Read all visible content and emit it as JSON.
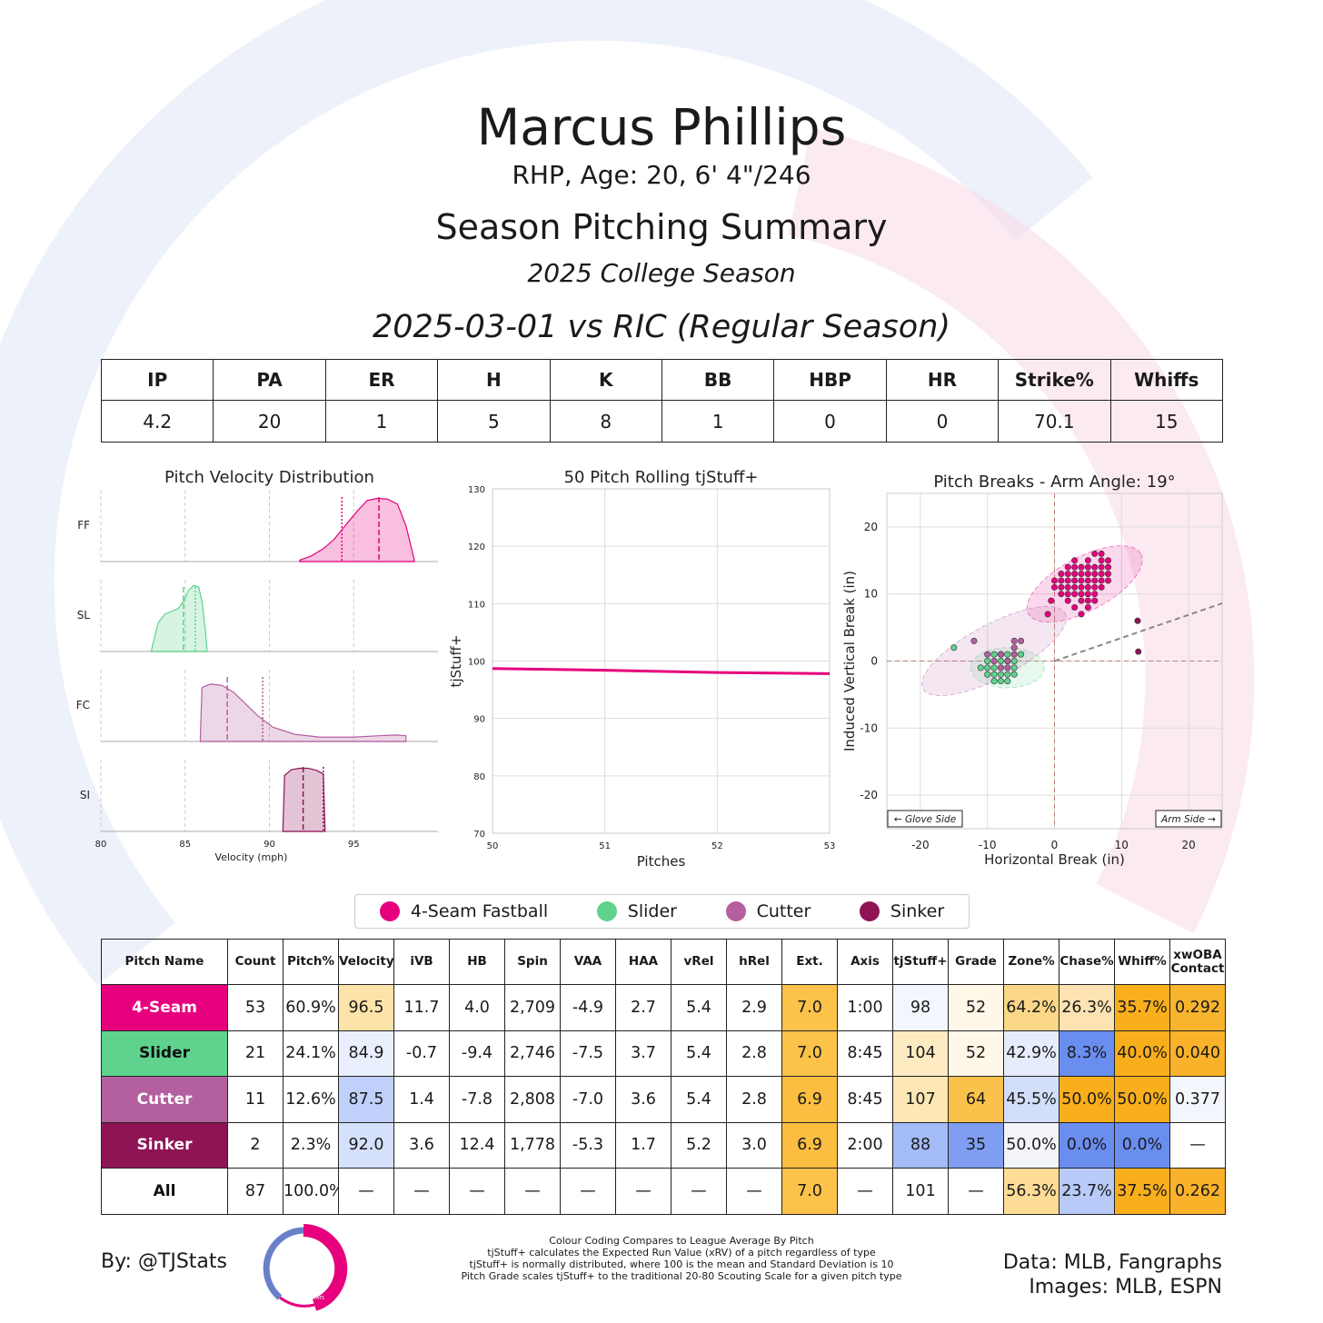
{
  "header": {
    "player_name": "Marcus Phillips",
    "player_info": "RHP, Age: 20, 6' 4\"/246",
    "summary_title": "Season Pitching Summary",
    "season_label": "2025 College Season",
    "game_label": "2025-03-01 vs RIC (Regular Season)"
  },
  "line_score": {
    "headers": [
      "IP",
      "PA",
      "ER",
      "H",
      "K",
      "BB",
      "HBP",
      "HR",
      "Strike%",
      "Whiffs"
    ],
    "values": [
      "4.2",
      "20",
      "1",
      "5",
      "8",
      "1",
      "0",
      "0",
      "70.1",
      "15"
    ]
  },
  "colors": {
    "four_seam": "#E6007E",
    "slider": "#5FD38D",
    "cutter": "#B45FA0",
    "sinker": "#8E1456",
    "table_orange_strong": "#F9A825",
    "table_blue_strong": "#6A8DF0"
  },
  "legend": [
    {
      "label": "4-Seam Fastball",
      "color": "#E6007E"
    },
    {
      "label": "Slider",
      "color": "#5FD38D"
    },
    {
      "label": "Cutter",
      "color": "#B45FA0"
    },
    {
      "label": "Sinker",
      "color": "#8E1456"
    }
  ],
  "pitch_table": {
    "headers": [
      "Pitch Name",
      "Count",
      "Pitch%",
      "Velocity",
      "iVB",
      "HB",
      "Spin",
      "VAA",
      "HAA",
      "vRel",
      "hRel",
      "Ext.",
      "Axis",
      "tjStuff+",
      "Grade",
      "Zone%",
      "Chase%",
      "Whiff%",
      "xwOBA Contact"
    ],
    "rows": [
      {
        "name": "4-Seam",
        "name_bg": "#E6007E",
        "name_color": "#ffffff",
        "cells": [
          "53",
          "60.9%",
          "96.5",
          "11.7",
          "4.0",
          "2,709",
          "-4.9",
          "2.7",
          "5.4",
          "2.9",
          "7.0",
          "1:00",
          "98",
          "52",
          "64.2%",
          "26.3%",
          "35.7%",
          "0.292"
        ],
        "bg": [
          "",
          "",
          "#FDE3A7",
          "",
          "",
          "",
          "",
          "",
          "",
          "",
          "#FCC24A",
          "",
          "#F3F6FD",
          "#FFF7E8",
          "#FDD788",
          "#FEE3B2",
          "#F9AE1C",
          "#F9B42E"
        ]
      },
      {
        "name": "Slider",
        "name_bg": "#5FD38D",
        "name_color": "#111111",
        "cells": [
          "21",
          "24.1%",
          "84.9",
          "-0.7",
          "-9.4",
          "2,746",
          "-7.5",
          "3.7",
          "5.4",
          "2.8",
          "7.0",
          "8:45",
          "104",
          "52",
          "42.9%",
          "8.3%",
          "40.0%",
          "0.040"
        ],
        "bg": [
          "",
          "",
          "#E9EFFC",
          "",
          "",
          "",
          "",
          "",
          "",
          "",
          "#FCC24A",
          "",
          "#FFEBC2",
          "#FFF7E8",
          "#E6ECFB",
          "#6A8DF0",
          "#F9AE1C",
          "#F9B22A"
        ]
      },
      {
        "name": "Cutter",
        "name_bg": "#B45FA0",
        "name_color": "#ffffff",
        "cells": [
          "11",
          "12.6%",
          "87.5",
          "1.4",
          "-7.8",
          "2,808",
          "-7.0",
          "3.6",
          "5.4",
          "2.8",
          "6.9",
          "8:45",
          "107",
          "64",
          "45.5%",
          "50.0%",
          "50.0%",
          "0.377"
        ],
        "bg": [
          "",
          "",
          "#BFD0FA",
          "",
          "",
          "",
          "",
          "",
          "",
          "",
          "#FCBE40",
          "",
          "#FEE6B5",
          "#FAC24A",
          "#D2DEFA",
          "#F9AE1C",
          "#F9AE1C",
          "#F4F6FD"
        ]
      },
      {
        "name": "Sinker",
        "name_bg": "#8E1456",
        "name_color": "#ffffff",
        "cells": [
          "2",
          "2.3%",
          "92.0",
          "3.6",
          "12.4",
          "1,778",
          "-5.3",
          "1.7",
          "5.2",
          "3.0",
          "6.9",
          "2:00",
          "88",
          "35",
          "50.0%",
          "0.0%",
          "0.0%",
          "—"
        ],
        "bg": [
          "",
          "",
          "#D5E0FA",
          "",
          "",
          "",
          "",
          "",
          "",
          "",
          "#FCBE40",
          "",
          "#A3BCF6",
          "#7F9EF2",
          "#F2F4FA",
          "#6A8DF0",
          "#6A8DF0",
          ""
        ]
      },
      {
        "name": "All",
        "name_bg": "#ffffff",
        "name_color": "#111111",
        "cells": [
          "87",
          "100.0%",
          "—",
          "—",
          "—",
          "—",
          "—",
          "—",
          "—",
          "—",
          "7.0",
          "—",
          "101",
          "—",
          "56.3%",
          "23.7%",
          "37.5%",
          "0.262"
        ],
        "bg": [
          "",
          "",
          "",
          "",
          "",
          "",
          "",
          "",
          "",
          "",
          "#FCC24A",
          "",
          "",
          "",
          "#FDDC95",
          "#B8CBF8",
          "#F9AE1C",
          "#F9B22A"
        ]
      }
    ]
  },
  "footer": {
    "by": "By: @TJStats",
    "notes": [
      "Colour Coding Compares to League Average By Pitch",
      "tjStuff+ calculates the Expected Run Value (xRV) of a pitch regardless of type",
      "tjStuff+ is normally distributed, where 100 is the mean and Standard Deviation is 10",
      "Pitch Grade scales tjStuff+ to the traditional 20-80 Scouting Scale for a given pitch type"
    ],
    "data_source": "Data: MLB, Fangraphs",
    "images_source": "Images: MLB, ESPN",
    "logo_text": "STATS"
  },
  "chart_data": [
    {
      "type": "area",
      "title": "Pitch Velocity Distribution",
      "xlabel": "Velocity (mph)",
      "ylabel": "",
      "xlim": [
        80,
        100
      ],
      "xticks": [
        80,
        85,
        90,
        95
      ],
      "series": [
        {
          "name": "FF",
          "color": "#E6007E",
          "mean": 96.5,
          "league": 94.3,
          "x": [
            91.8,
            92.5,
            93.2,
            93.8,
            94.5,
            95.2,
            95.8,
            96.4,
            97.0,
            97.6,
            98.1,
            98.6
          ],
          "y": [
            0.02,
            0.08,
            0.18,
            0.3,
            0.5,
            0.7,
            0.85,
            0.88,
            0.87,
            0.8,
            0.5,
            0.02
          ]
        },
        {
          "name": "SL",
          "color": "#5FD38D",
          "mean": 84.9,
          "league": 85.6,
          "x": [
            83.0,
            83.4,
            83.8,
            84.2,
            84.6,
            84.9,
            85.2,
            85.5,
            85.8,
            86.0,
            86.2,
            86.3
          ],
          "y": [
            0.02,
            0.4,
            0.52,
            0.56,
            0.6,
            0.7,
            0.85,
            0.92,
            0.9,
            0.7,
            0.3,
            0.02
          ]
        },
        {
          "name": "FC",
          "color": "#B45FA0",
          "mean": 87.5,
          "league": 89.6,
          "x": [
            85.9,
            86.0,
            86.5,
            87.2,
            87.9,
            88.6,
            89.3,
            90.2,
            91.5,
            93.0,
            95.0,
            96.5,
            97.5,
            98.1
          ],
          "y": [
            0.05,
            0.75,
            0.8,
            0.78,
            0.68,
            0.52,
            0.36,
            0.2,
            0.1,
            0.06,
            0.06,
            0.08,
            0.09,
            0.08
          ]
        },
        {
          "name": "SI",
          "color": "#8E1456",
          "mean": 92.0,
          "league": 93.2,
          "x": [
            90.8,
            90.9,
            91.3,
            91.8,
            92.3,
            92.8,
            93.2,
            93.3
          ],
          "y": [
            0.02,
            0.78,
            0.86,
            0.88,
            0.88,
            0.85,
            0.8,
            0.02
          ]
        }
      ]
    },
    {
      "type": "line",
      "title": "50 Pitch Rolling tjStuff+",
      "xlabel": "Pitches",
      "ylabel": "tjStuff+",
      "xlim": [
        50,
        53
      ],
      "ylim": [
        70,
        130
      ],
      "xticks": [
        50,
        51,
        52,
        53
      ],
      "yticks": [
        70,
        80,
        90,
        100,
        110,
        120,
        130
      ],
      "series": [
        {
          "name": "",
          "color": "#E6007E",
          "x": [
            50,
            51,
            52,
            53
          ],
          "y": [
            98.7,
            98.4,
            98.0,
            97.8
          ]
        }
      ]
    },
    {
      "type": "scatter",
      "title": "Pitch Breaks - Arm Angle: 19°",
      "xlabel": "Horizontal Break (in)",
      "ylabel": "Induced Vertical Break (in)",
      "xlim": [
        -25,
        25
      ],
      "ylim": [
        -25,
        25
      ],
      "xticks": [
        -20,
        -10,
        0,
        10,
        20
      ],
      "yticks": [
        -20,
        -10,
        0,
        10,
        20
      ],
      "arm_angle": 19,
      "annotations": [
        "← Glove Side",
        "Arm Side →"
      ],
      "series": [
        {
          "name": "4-Seam Fastball",
          "color": "#E6007E",
          "ellipse": {
            "cx": 4.5,
            "cy": 11.5,
            "rx": 9.5,
            "ry": 4.0,
            "angle": 28
          },
          "points": [
            [
              1,
              12
            ],
            [
              2,
              13
            ],
            [
              3,
              11
            ],
            [
              4,
              12
            ],
            [
              5,
              13
            ],
            [
              6,
              14
            ],
            [
              7,
              15
            ],
            [
              3,
              10
            ],
            [
              4,
              9
            ],
            [
              5,
              10
            ],
            [
              6,
              11
            ],
            [
              7,
              12
            ],
            [
              8,
              13
            ],
            [
              2,
              14
            ],
            [
              3,
              15
            ],
            [
              4,
              14
            ],
            [
              5,
              15
            ],
            [
              6,
              13
            ],
            [
              7,
              14
            ],
            [
              8,
              15
            ],
            [
              1,
              10
            ],
            [
              2,
              9
            ],
            [
              3,
              8
            ],
            [
              4,
              7
            ],
            [
              5,
              8
            ],
            [
              6,
              9
            ],
            [
              2,
              11
            ],
            [
              3,
              12
            ],
            [
              4,
              13
            ],
            [
              5,
              11
            ],
            [
              6,
              12
            ],
            [
              7,
              13
            ],
            [
              0,
              12
            ],
            [
              0,
              11
            ],
            [
              1,
              13
            ],
            [
              8,
              14
            ],
            [
              6,
              16
            ],
            [
              7,
              16
            ],
            [
              -0.5,
              9
            ],
            [
              4,
              10
            ],
            [
              5,
              12
            ],
            [
              3,
              13
            ],
            [
              2,
              10
            ],
            [
              6,
              10
            ],
            [
              7,
              11
            ],
            [
              8,
              12
            ],
            [
              3,
              14
            ],
            [
              4,
              11
            ],
            [
              5,
              14
            ],
            [
              1,
              11
            ],
            [
              2,
              12
            ],
            [
              5,
              9
            ],
            [
              -1,
              7
            ]
          ]
        },
        {
          "name": "Slider",
          "color": "#5FD38D",
          "ellipse": {
            "cx": -7,
            "cy": -1,
            "rx": 5.5,
            "ry": 3.0,
            "angle": 0
          },
          "points": [
            [
              -10,
              0
            ],
            [
              -9,
              -1
            ],
            [
              -8,
              0
            ],
            [
              -7,
              -2
            ],
            [
              -6,
              0
            ],
            [
              -5,
              1
            ],
            [
              -9,
              -2
            ],
            [
              -8,
              -3
            ],
            [
              -7,
              0
            ],
            [
              -6,
              -1
            ],
            [
              -10,
              -1
            ],
            [
              -9,
              1
            ],
            [
              -8,
              1
            ],
            [
              -7,
              -3
            ],
            [
              -6,
              -2
            ],
            [
              -11,
              -1
            ],
            [
              -10,
              -2
            ],
            [
              -15,
              2
            ],
            [
              -9,
              -3
            ],
            [
              -8,
              -2
            ],
            [
              -7,
              1
            ]
          ]
        },
        {
          "name": "Cutter",
          "color": "#B45FA0",
          "ellipse": {
            "cx": -9,
            "cy": 1.5,
            "rx": 12.0,
            "ry": 4.0,
            "angle": 28
          },
          "points": [
            [
              -12,
              3
            ],
            [
              -8,
              1
            ],
            [
              -7,
              0
            ],
            [
              -6,
              2
            ],
            [
              -5,
              3
            ],
            [
              -7,
              -1
            ],
            [
              -9,
              0
            ],
            [
              -6,
              1
            ],
            [
              -10,
              1
            ],
            [
              -8,
              -1
            ],
            [
              -6,
              3
            ]
          ]
        },
        {
          "name": "Sinker",
          "color": "#8E1456",
          "ellipse": null,
          "points": [
            [
              12.4,
              6
            ],
            [
              12.5,
              1.4
            ]
          ]
        }
      ]
    }
  ]
}
